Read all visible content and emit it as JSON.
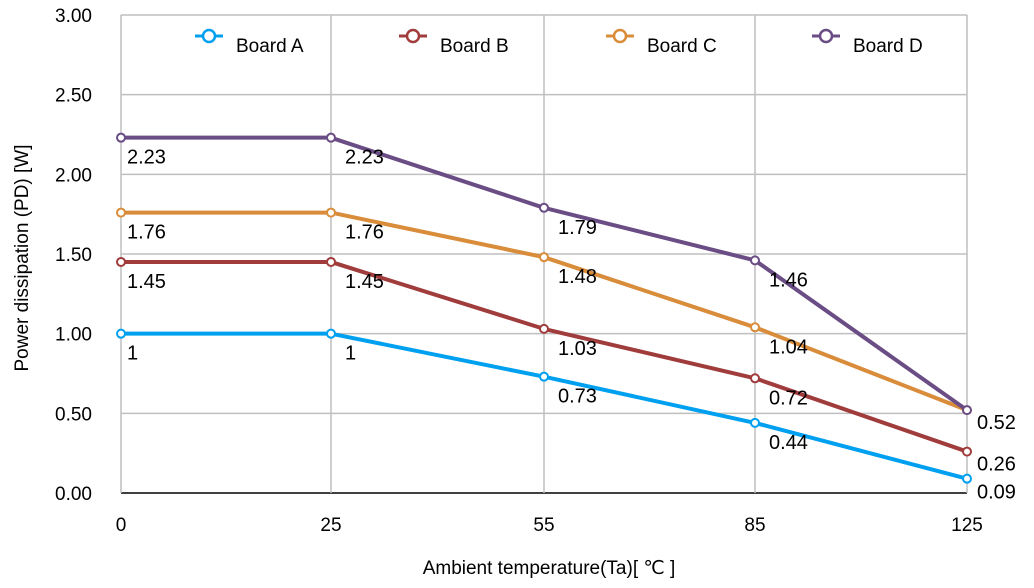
{
  "chart_data": {
    "type": "line",
    "title": "",
    "xlabel": "Ambient temperature(Ta)[ ℃ ]",
    "ylabel": "Power dissipation (PD) [W]",
    "categories": [
      "0",
      "25",
      "55",
      "85",
      "125"
    ],
    "ylim": [
      0,
      3
    ],
    "y_ticks": [
      "0.00",
      "0.50",
      "1.00",
      "1.50",
      "2.00",
      "2.50",
      "3.00"
    ],
    "grid": true,
    "legend_position": "top",
    "series": [
      {
        "name": "Board A",
        "color": "#00a0f0",
        "values": [
          1,
          1,
          0.73,
          0.44,
          0.09
        ],
        "labels": [
          "1",
          "1",
          "0.73",
          "0.44",
          "0.09"
        ]
      },
      {
        "name": "Board B",
        "color": "#a03c3c",
        "values": [
          1.45,
          1.45,
          1.03,
          0.72,
          0.26
        ],
        "labels": [
          "1.45",
          "1.45",
          "1.03",
          "0.72",
          "0.26"
        ]
      },
      {
        "name": "Board C",
        "color": "#d98c3a",
        "values": [
          1.76,
          1.76,
          1.48,
          1.04,
          0.52
        ],
        "labels": [
          "1.76",
          "1.76",
          "1.48",
          "1.04",
          "0.52"
        ]
      },
      {
        "name": "Board D",
        "color": "#6a4d84",
        "values": [
          2.23,
          2.23,
          1.79,
          1.46,
          0.52
        ],
        "labels": [
          "2.23",
          "2.23",
          "1.79",
          "1.46",
          ""
        ]
      }
    ]
  }
}
